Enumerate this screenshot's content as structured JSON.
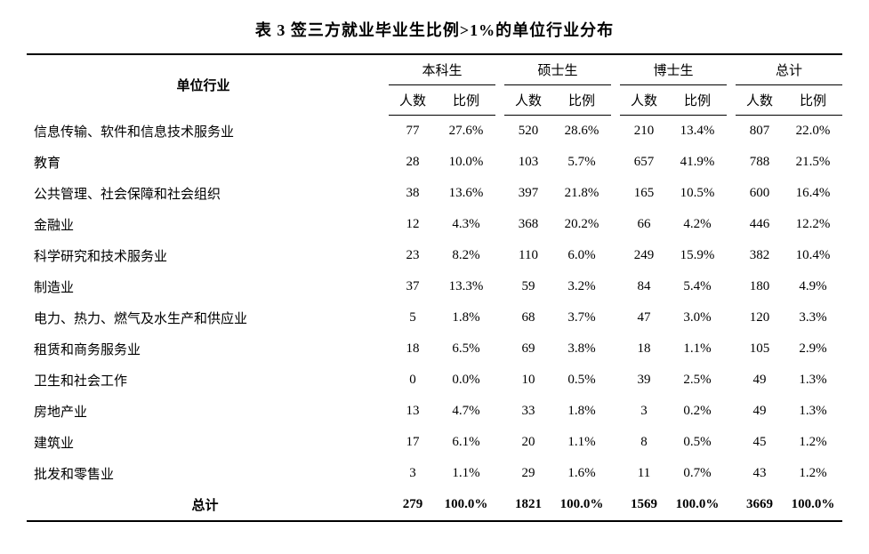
{
  "title": "表 3 签三方就业毕业生比例>1%的单位行业分布",
  "headers": {
    "industry": "单位行业",
    "groups": [
      "本科生",
      "硕士生",
      "博士生",
      "总计"
    ],
    "sub": {
      "count": "人数",
      "ratio": "比例"
    }
  },
  "rows": [
    {
      "industry": "信息传输、软件和信息技术服务业",
      "vals": [
        "77",
        "27.6%",
        "520",
        "28.6%",
        "210",
        "13.4%",
        "807",
        "22.0%"
      ]
    },
    {
      "industry": "教育",
      "vals": [
        "28",
        "10.0%",
        "103",
        "5.7%",
        "657",
        "41.9%",
        "788",
        "21.5%"
      ]
    },
    {
      "industry": "公共管理、社会保障和社会组织",
      "vals": [
        "38",
        "13.6%",
        "397",
        "21.8%",
        "165",
        "10.5%",
        "600",
        "16.4%"
      ]
    },
    {
      "industry": "金融业",
      "vals": [
        "12",
        "4.3%",
        "368",
        "20.2%",
        "66",
        "4.2%",
        "446",
        "12.2%"
      ]
    },
    {
      "industry": "科学研究和技术服务业",
      "vals": [
        "23",
        "8.2%",
        "110",
        "6.0%",
        "249",
        "15.9%",
        "382",
        "10.4%"
      ]
    },
    {
      "industry": "制造业",
      "vals": [
        "37",
        "13.3%",
        "59",
        "3.2%",
        "84",
        "5.4%",
        "180",
        "4.9%"
      ]
    },
    {
      "industry": "电力、热力、燃气及水生产和供应业",
      "vals": [
        "5",
        "1.8%",
        "68",
        "3.7%",
        "47",
        "3.0%",
        "120",
        "3.3%"
      ]
    },
    {
      "industry": "租赁和商务服务业",
      "vals": [
        "18",
        "6.5%",
        "69",
        "3.8%",
        "18",
        "1.1%",
        "105",
        "2.9%"
      ]
    },
    {
      "industry": "卫生和社会工作",
      "vals": [
        "0",
        "0.0%",
        "10",
        "0.5%",
        "39",
        "2.5%",
        "49",
        "1.3%"
      ]
    },
    {
      "industry": "房地产业",
      "vals": [
        "13",
        "4.7%",
        "33",
        "1.8%",
        "3",
        "0.2%",
        "49",
        "1.3%"
      ]
    },
    {
      "industry": "建筑业",
      "vals": [
        "17",
        "6.1%",
        "20",
        "1.1%",
        "8",
        "0.5%",
        "45",
        "1.2%"
      ]
    },
    {
      "industry": "批发和零售业",
      "vals": [
        "3",
        "1.1%",
        "29",
        "1.6%",
        "11",
        "0.7%",
        "43",
        "1.2%"
      ]
    }
  ],
  "total": {
    "label": "总计",
    "vals": [
      "279",
      "100.0%",
      "1821",
      "100.0%",
      "1569",
      "100.0%",
      "3669",
      "100.0%"
    ]
  },
  "style": {
    "background_color": "#ffffff",
    "text_color": "#000000",
    "border_color": "#000000",
    "title_fontsize": 18,
    "body_fontsize": 15,
    "font_family": "SimSun"
  }
}
